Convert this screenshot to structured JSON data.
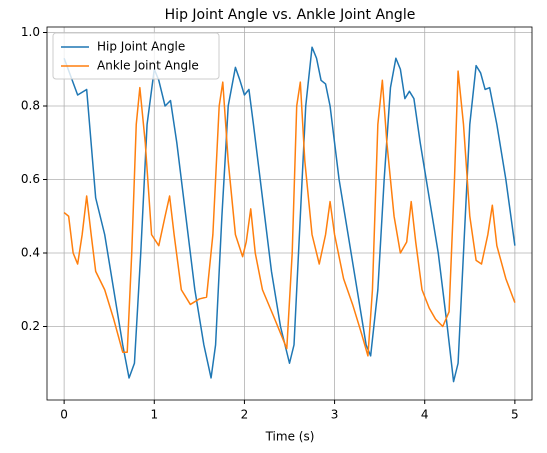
{
  "chart_data": {
    "type": "line",
    "title": "Hip Joint Angle vs. Ankle Joint Angle",
    "x_label": "Time (s)",
    "xlim": [
      -0.19,
      5.19
    ],
    "ylim": [
      0.0,
      1.015
    ],
    "xticks": [
      0,
      1,
      2,
      3,
      4,
      5
    ],
    "yticks": [
      0.2,
      0.4,
      0.6,
      0.8,
      {
        "value": 1.0,
        "label": "1.0"
      }
    ],
    "grid": true,
    "legend": "upper left",
    "series": [
      {
        "name": "Hip Joint Angle",
        "color": "#1f77b4",
        "x": [
          0,
          0.15,
          0.25,
          0.35,
          0.45,
          0.55,
          0.65,
          0.72,
          0.78,
          0.85,
          0.92,
          1.0,
          1.05,
          1.12,
          1.18,
          1.25,
          1.35,
          1.45,
          1.55,
          1.63,
          1.68,
          1.75,
          1.82,
          1.9,
          1.95,
          2.0,
          2.05,
          2.1,
          2.2,
          2.3,
          2.4,
          2.5,
          2.55,
          2.62,
          2.68,
          2.75,
          2.8,
          2.85,
          2.9,
          2.95,
          3.05,
          3.15,
          3.25,
          3.35,
          3.4,
          3.48,
          3.55,
          3.62,
          3.68,
          3.73,
          3.78,
          3.83,
          3.88,
          3.95,
          4.05,
          4.15,
          4.25,
          4.32,
          4.37,
          4.43,
          4.5,
          4.57,
          4.62,
          4.67,
          4.72,
          4.8,
          4.9,
          5.0
        ],
        "values": [
          0.93,
          0.83,
          0.845,
          0.55,
          0.45,
          0.3,
          0.15,
          0.06,
          0.1,
          0.4,
          0.75,
          0.9,
          0.87,
          0.8,
          0.815,
          0.7,
          0.5,
          0.3,
          0.15,
          0.06,
          0.15,
          0.5,
          0.8,
          0.905,
          0.87,
          0.83,
          0.845,
          0.75,
          0.55,
          0.35,
          0.2,
          0.1,
          0.15,
          0.5,
          0.8,
          0.96,
          0.93,
          0.87,
          0.86,
          0.8,
          0.6,
          0.45,
          0.3,
          0.15,
          0.12,
          0.3,
          0.6,
          0.85,
          0.93,
          0.9,
          0.82,
          0.84,
          0.82,
          0.7,
          0.55,
          0.4,
          0.2,
          0.05,
          0.1,
          0.4,
          0.75,
          0.91,
          0.89,
          0.845,
          0.85,
          0.75,
          0.6,
          0.42
        ]
      },
      {
        "name": "Ankle Joint Angle",
        "color": "#ff7f0e",
        "x": [
          0,
          0.05,
          0.1,
          0.15,
          0.2,
          0.25,
          0.3,
          0.35,
          0.45,
          0.55,
          0.65,
          0.7,
          0.75,
          0.8,
          0.84,
          0.9,
          0.97,
          1.05,
          1.12,
          1.17,
          1.22,
          1.3,
          1.4,
          1.5,
          1.58,
          1.65,
          1.72,
          1.76,
          1.82,
          1.9,
          1.98,
          2.02,
          2.07,
          2.12,
          2.2,
          2.32,
          2.42,
          2.47,
          2.53,
          2.58,
          2.62,
          2.67,
          2.75,
          2.83,
          2.9,
          2.95,
          3.0,
          3.1,
          3.2,
          3.3,
          3.37,
          3.42,
          3.48,
          3.53,
          3.58,
          3.66,
          3.73,
          3.8,
          3.85,
          3.9,
          3.97,
          4.05,
          4.12,
          4.2,
          4.27,
          4.33,
          4.37,
          4.43,
          4.5,
          4.57,
          4.63,
          4.7,
          4.75,
          4.8,
          4.9,
          5.0
        ],
        "values": [
          0.51,
          0.5,
          0.4,
          0.37,
          0.45,
          0.555,
          0.45,
          0.35,
          0.3,
          0.22,
          0.13,
          0.13,
          0.4,
          0.75,
          0.85,
          0.7,
          0.45,
          0.42,
          0.5,
          0.555,
          0.45,
          0.3,
          0.26,
          0.275,
          0.28,
          0.45,
          0.8,
          0.865,
          0.65,
          0.45,
          0.39,
          0.43,
          0.52,
          0.4,
          0.3,
          0.23,
          0.17,
          0.14,
          0.4,
          0.8,
          0.865,
          0.65,
          0.45,
          0.37,
          0.45,
          0.54,
          0.45,
          0.33,
          0.26,
          0.18,
          0.12,
          0.3,
          0.75,
          0.87,
          0.7,
          0.5,
          0.4,
          0.43,
          0.54,
          0.43,
          0.3,
          0.25,
          0.22,
          0.2,
          0.24,
          0.6,
          0.895,
          0.75,
          0.5,
          0.38,
          0.37,
          0.45,
          0.53,
          0.42,
          0.33,
          0.265
        ]
      }
    ]
  }
}
